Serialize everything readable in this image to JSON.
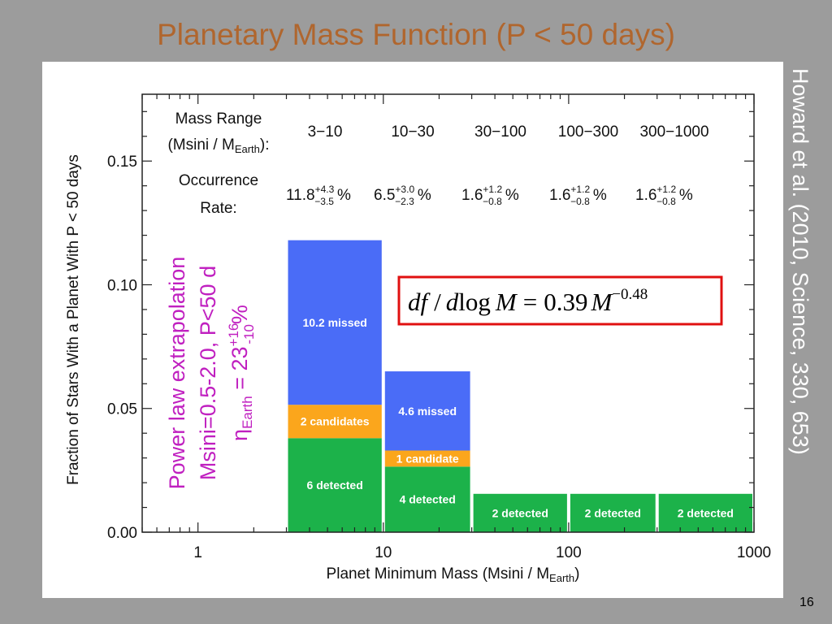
{
  "slide": {
    "title": "Planetary Mass Function (P < 50 days)",
    "citation": "Howard et al. (2010, Science, 330, 653)",
    "page_number": "16"
  },
  "colors": {
    "title": "#b0662e",
    "missed": "#4a6cf7",
    "candidates": "#fba61c",
    "detected": "#1cb24a",
    "annotation": "#c020c0",
    "formula_box": "#e01010"
  },
  "chart_data": {
    "type": "bar",
    "xscale": "log",
    "xlim": [
      0.5,
      1000
    ],
    "ylim": [
      0,
      0.177
    ],
    "xlabel": "Planet Minimum Mass  (Msini / M",
    "xlabel_sub": "Earth",
    "xlabel_tail": ")",
    "ylabel": "Fraction of Stars With a Planet With P < 50 days",
    "xticks": [
      {
        "value": 1,
        "label": "1"
      },
      {
        "value": 10,
        "label": "10"
      },
      {
        "value": 100,
        "label": "100"
      },
      {
        "value": 1000,
        "label": "1000"
      }
    ],
    "yticks": [
      {
        "value": 0.0,
        "label": "0.00"
      },
      {
        "value": 0.05,
        "label": "0.05"
      },
      {
        "value": 0.1,
        "label": "0.10"
      },
      {
        "value": 0.15,
        "label": "0.15"
      }
    ],
    "bins": [
      {
        "range": "3−10",
        "x0": 3,
        "x1": 10,
        "segments": [
          {
            "kind": "detected",
            "value": 0.038,
            "label": "6 detected"
          },
          {
            "kind": "candidates",
            "value": 0.0135,
            "label": "2 candidates"
          },
          {
            "kind": "missed",
            "value": 0.0665,
            "label": "10.2 missed"
          }
        ],
        "rate": {
          "value": "11.8",
          "plus": "+4.3",
          "minus": "−3.5"
        }
      },
      {
        "range": "10−30",
        "x0": 10,
        "x1": 30,
        "segments": [
          {
            "kind": "detected",
            "value": 0.0265,
            "label": "4 detected"
          },
          {
            "kind": "candidates",
            "value": 0.0065,
            "label": "1 candidate"
          },
          {
            "kind": "missed",
            "value": 0.032,
            "label": "4.6 missed"
          }
        ],
        "rate": {
          "value": "6.5",
          "plus": "+3.0",
          "minus": "−2.3"
        }
      },
      {
        "range": "30−100",
        "x0": 30,
        "x1": 100,
        "segments": [
          {
            "kind": "detected",
            "value": 0.0155,
            "label": "2 detected"
          }
        ],
        "rate": {
          "value": "1.6",
          "plus": "+1.2",
          "minus": "−0.8"
        }
      },
      {
        "range": "100−300",
        "x0": 100,
        "x1": 300,
        "segments": [
          {
            "kind": "detected",
            "value": 0.0155,
            "label": "2 detected"
          }
        ],
        "rate": {
          "value": "1.6",
          "plus": "+1.2",
          "minus": "−0.8"
        }
      },
      {
        "range": "300−1000",
        "x0": 300,
        "x1": 1000,
        "segments": [
          {
            "kind": "detected",
            "value": 0.0155,
            "label": "2 detected"
          }
        ],
        "rate": {
          "value": "1.6",
          "plus": "+1.2",
          "minus": "−0.8"
        }
      }
    ],
    "header": {
      "mass_range_line1": "Mass Range",
      "mass_range_line2": "(Msini / M",
      "mass_range_sub": "Earth",
      "mass_range_tail": "):",
      "occurrence_line1": "Occurrence",
      "occurrence_line2": "Rate:",
      "percent": "%"
    },
    "annotation": {
      "line1": "Power law extrapolation",
      "line2": "Msini=0.5-2.0, P<50 d",
      "eta": "η",
      "eta_sub": "Earth",
      "eta_eq": " =  23",
      "eta_plus": "+16",
      "eta_minus": "-10",
      "eta_pct": "%"
    },
    "formula": {
      "df": "df",
      "slash": "/",
      "d": "d",
      "log": "log",
      "M": "M",
      "eq": "=",
      "coef": "0.39",
      "exp": "−0.48"
    }
  }
}
